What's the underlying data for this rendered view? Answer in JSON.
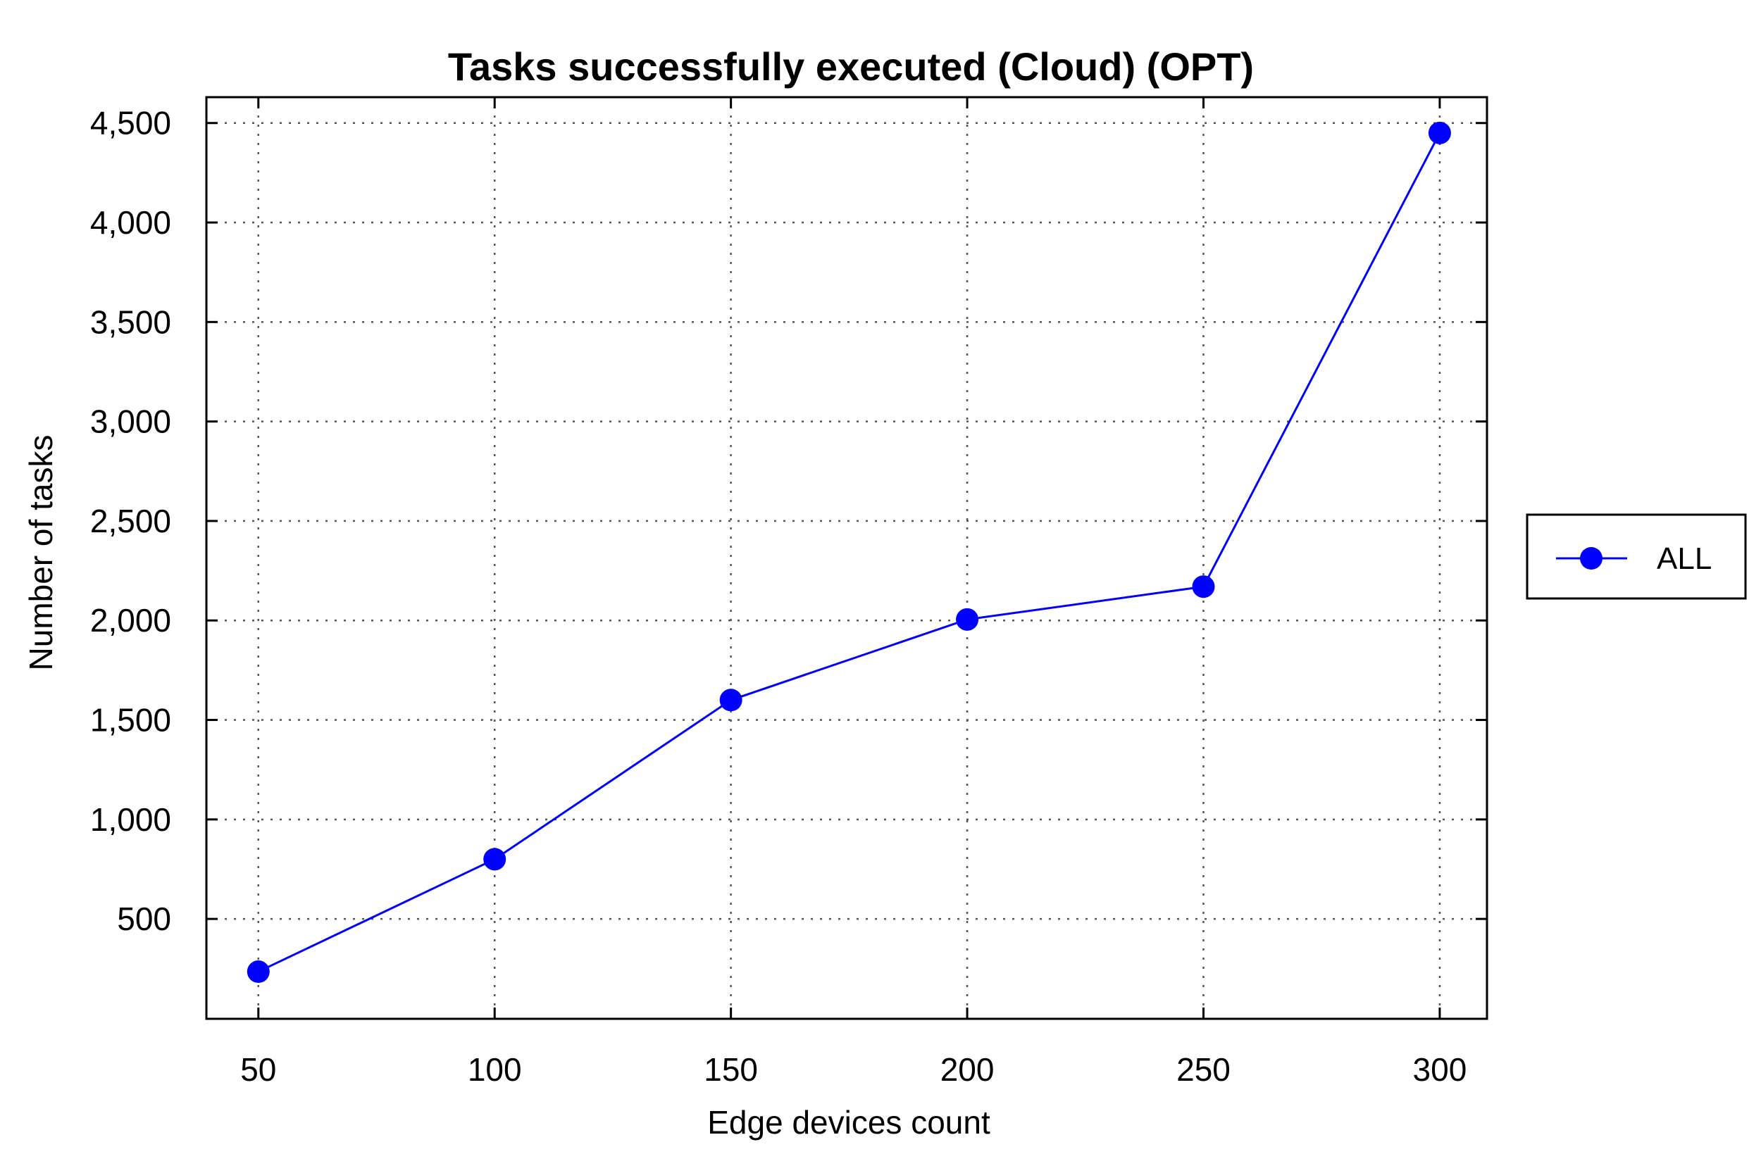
{
  "chart_data": {
    "type": "line",
    "title": "Tasks successfully executed (Cloud) (OPT)",
    "xlabel": "Edge devices count",
    "ylabel": "Number of tasks",
    "x": [
      50,
      100,
      150,
      200,
      250,
      300
    ],
    "x_ticks": [
      "50",
      "100",
      "150",
      "200",
      "250",
      "300"
    ],
    "y_ticks": [
      {
        "value": 500,
        "label": "500"
      },
      {
        "value": 1000,
        "label": "1,000"
      },
      {
        "value": 1500,
        "label": "1,500"
      },
      {
        "value": 2000,
        "label": "2,000"
      },
      {
        "value": 2500,
        "label": "2,500"
      },
      {
        "value": 3000,
        "label": "3,000"
      },
      {
        "value": 3500,
        "label": "3,500"
      },
      {
        "value": 4000,
        "label": "4,000"
      },
      {
        "value": 4500,
        "label": "4,500"
      }
    ],
    "xlim": [
      39,
      310
    ],
    "ylim": [
      -2,
      4630
    ],
    "grid": true,
    "legend_position": "right",
    "series": [
      {
        "name": "ALL",
        "color": "#0000ff",
        "marker": "circle",
        "values": [
          235,
          800,
          1600,
          2005,
          2170,
          4450
        ]
      }
    ]
  }
}
